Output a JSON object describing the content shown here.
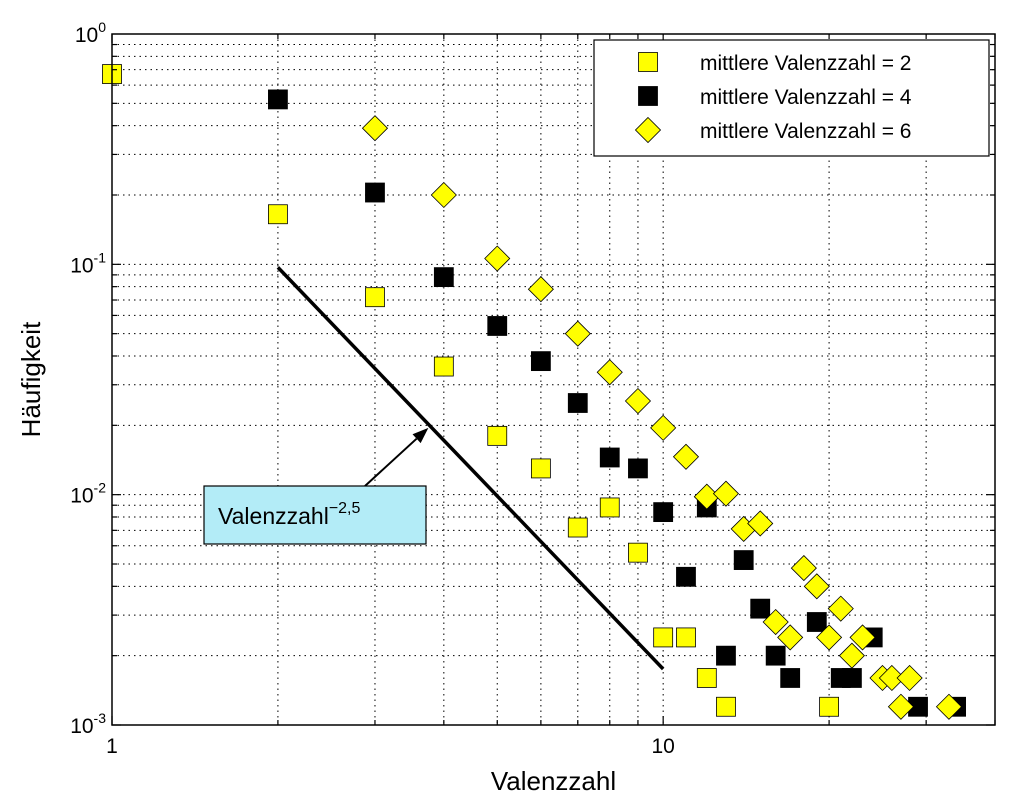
{
  "chart_data": {
    "type": "scatter",
    "xlabel": "Valenzzahl",
    "ylabel": "Häufigkeit",
    "xscale": "log",
    "yscale": "log",
    "xlim": [
      1,
      40
    ],
    "ylim": [
      0.001,
      1
    ],
    "grid": true,
    "legend_position": "top-right",
    "x_ticks": [
      {
        "value": 1,
        "label": "1"
      },
      {
        "value": 10,
        "label": "10"
      }
    ],
    "y_ticks": [
      {
        "value": 1,
        "base": "10",
        "exp": "0"
      },
      {
        "value": 0.1,
        "base": "10",
        "exp": "-1"
      },
      {
        "value": 0.01,
        "base": "10",
        "exp": "-2"
      },
      {
        "value": 0.001,
        "base": "10",
        "exp": "-3"
      }
    ],
    "series": [
      {
        "name": "mittlere Valenzzahl = 2",
        "marker": "square",
        "color": "#ffff00",
        "points": [
          [
            1,
            0.67
          ],
          [
            2,
            0.165
          ],
          [
            3,
            0.072
          ],
          [
            4,
            0.036
          ],
          [
            5,
            0.018
          ],
          [
            6,
            0.013
          ],
          [
            7,
            0.0072
          ],
          [
            8,
            0.0088
          ],
          [
            9,
            0.0056
          ],
          [
            10,
            0.0024
          ],
          [
            11,
            0.0024
          ],
          [
            12,
            0.0016
          ],
          [
            13,
            0.0012
          ],
          [
            20,
            0.0012
          ]
        ]
      },
      {
        "name": "mittlere Valenzzahl = 4",
        "marker": "square",
        "color": "#000000",
        "points": [
          [
            2,
            0.52
          ],
          [
            3,
            0.205
          ],
          [
            4,
            0.088
          ],
          [
            5,
            0.054
          ],
          [
            6,
            0.038
          ],
          [
            7,
            0.025
          ],
          [
            8,
            0.0145
          ],
          [
            9,
            0.013
          ],
          [
            10,
            0.0084
          ],
          [
            11,
            0.0044
          ],
          [
            12,
            0.0088
          ],
          [
            13,
            0.002
          ],
          [
            14,
            0.0052
          ],
          [
            15,
            0.0032
          ],
          [
            16,
            0.002
          ],
          [
            17,
            0.0016
          ],
          [
            19,
            0.0028
          ],
          [
            21,
            0.0016
          ],
          [
            22,
            0.0016
          ],
          [
            24,
            0.0024
          ],
          [
            29,
            0.0012
          ],
          [
            34,
            0.0012
          ]
        ]
      },
      {
        "name": "mittlere Valenzzahl = 6",
        "marker": "diamond",
        "color": "#ffff00",
        "points": [
          [
            3,
            0.39
          ],
          [
            4,
            0.2
          ],
          [
            5,
            0.106
          ],
          [
            6,
            0.078
          ],
          [
            7,
            0.05
          ],
          [
            8,
            0.034
          ],
          [
            9,
            0.0255
          ],
          [
            10,
            0.0195
          ],
          [
            11,
            0.0146
          ],
          [
            12,
            0.0098
          ],
          [
            13,
            0.0101
          ],
          [
            14,
            0.0071
          ],
          [
            15,
            0.0075
          ],
          [
            16,
            0.0028
          ],
          [
            17,
            0.0024
          ],
          [
            18,
            0.0048
          ],
          [
            19,
            0.004
          ],
          [
            20,
            0.0024
          ],
          [
            21,
            0.0032
          ],
          [
            22,
            0.002
          ],
          [
            23,
            0.0024
          ],
          [
            25,
            0.0016
          ],
          [
            26,
            0.0016
          ],
          [
            27,
            0.0012
          ],
          [
            28,
            0.0016
          ],
          [
            33,
            0.0012
          ]
        ]
      }
    ],
    "reference_line": {
      "points": [
        [
          2,
          0.097
        ],
        [
          10,
          0.00175
        ]
      ]
    },
    "annotation": {
      "text": "Valenzzahl",
      "superscript": "−2,5",
      "arrow_target": [
        3.75,
        0.0195
      ],
      "box_color": "#b3ecf7"
    }
  }
}
